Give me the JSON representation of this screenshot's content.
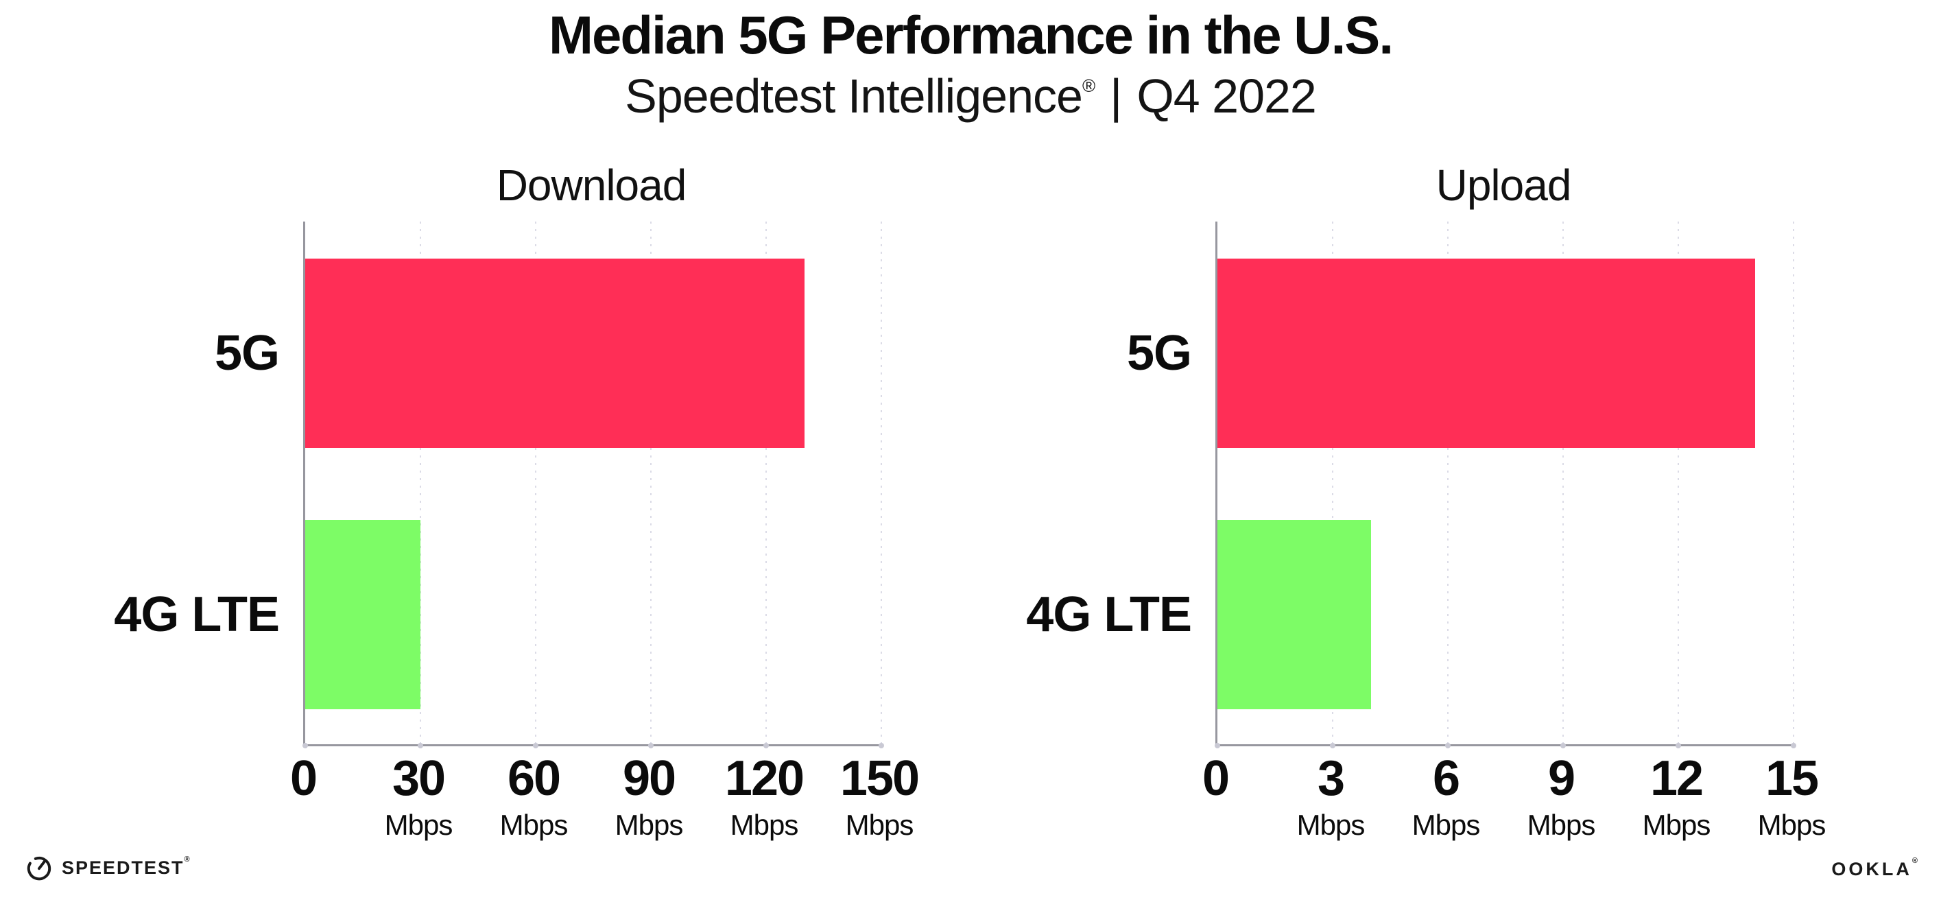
{
  "header": {
    "title": "Median 5G Performance in the U.S.",
    "subtitle_brand": "Speedtest Intelligence",
    "subtitle_mark": "®",
    "subtitle_divider": "|",
    "subtitle_period": "Q4 2022"
  },
  "chart_data": [
    {
      "type": "bar",
      "orientation": "horizontal",
      "title": "Download",
      "categories": [
        "5G",
        "4G LTE"
      ],
      "values": [
        130,
        30
      ],
      "unit": "Mbps",
      "xlabel": "",
      "ylabel": "",
      "xlim": [
        0,
        150
      ],
      "xticks": [
        0,
        30,
        60,
        90,
        120,
        150
      ],
      "bar_colors": [
        "#ff2e56",
        "#7dfc66"
      ],
      "grid": "dotted vertical gridlines at each tick",
      "legend": "none"
    },
    {
      "type": "bar",
      "orientation": "horizontal",
      "title": "Upload",
      "categories": [
        "5G",
        "4G LTE"
      ],
      "values": [
        14,
        4
      ],
      "unit": "Mbps",
      "xlabel": "",
      "ylabel": "",
      "xlim": [
        0,
        15
      ],
      "xticks": [
        0,
        3,
        6,
        9,
        12,
        15
      ],
      "bar_colors": [
        "#ff2e56",
        "#7dfc66"
      ],
      "grid": "dotted vertical gridlines at each tick",
      "legend": "none"
    }
  ],
  "footer": {
    "speedtest_label": "SPEEDTEST",
    "speedtest_mark": "®",
    "ookla_label": "OOKLA",
    "ookla_mark": "®"
  },
  "colors": {
    "bar_5g": "#ff2e56",
    "bar_4g_lte": "#7dfc66",
    "axis": "#97979f",
    "grid_dot": "#dbdbe6",
    "text": "#0b0b0b"
  }
}
